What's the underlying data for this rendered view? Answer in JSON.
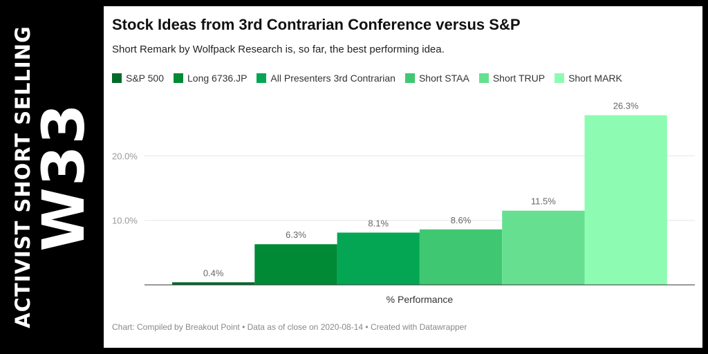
{
  "side_banner": {
    "line1": "ACTIVIST SHORT SELLING",
    "line2": "W33"
  },
  "chart_data": {
    "type": "bar",
    "title": "Stock Ideas from 3rd Contrarian Conference versus S&P",
    "subtitle": "Short Remark by Wolfpack Research is, so far, the best performing idea.",
    "xlabel": "% Performance",
    "ylabel": "",
    "ylim": [
      0,
      27
    ],
    "yticks": [
      10,
      20
    ],
    "ytick_labels": [
      "10.0%",
      "20.0%"
    ],
    "grid": true,
    "legend_position": "top-left",
    "series": [
      {
        "name": "S&P 500",
        "values": [
          0.4
        ],
        "label": "0.4%",
        "color": "#006b29"
      },
      {
        "name": "Long 6736.JP",
        "values": [
          6.3
        ],
        "label": "6.3%",
        "color": "#008a35"
      },
      {
        "name": "All Presenters 3rd Contrarian",
        "values": [
          8.1
        ],
        "label": "8.1%",
        "color": "#04a654"
      },
      {
        "name": "Short STAA",
        "values": [
          8.6
        ],
        "label": "8.6%",
        "color": "#3fc871"
      },
      {
        "name": "Short TRUP",
        "values": [
          11.5
        ],
        "label": "11.5%",
        "color": "#66e090"
      },
      {
        "name": "Short MARK",
        "values": [
          26.3
        ],
        "label": "26.3%",
        "color": "#8dfcb2"
      }
    ]
  },
  "footer": "Chart: Compiled by Breakout Point • Data as of close on 2020-08-14 • Created with Datawrapper"
}
